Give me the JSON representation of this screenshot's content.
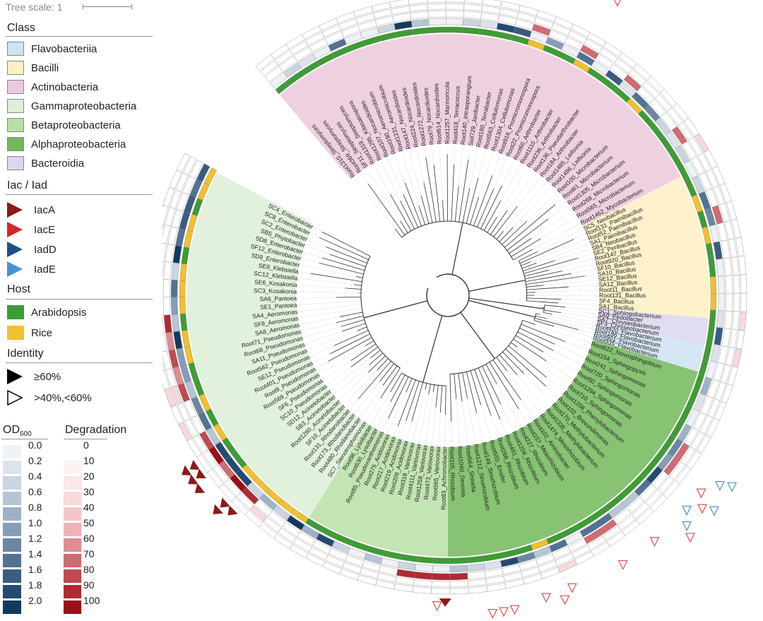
{
  "tree_scale": {
    "label": "Tree scale: 1"
  },
  "legend": {
    "class_title": "Class",
    "classes": [
      {
        "name": "Flavobacteriia",
        "color": "#cfe2f3"
      },
      {
        "name": "Bacilli",
        "color": "#fdf0c2"
      },
      {
        "name": "Actinobacteria",
        "color": "#ecc8dc"
      },
      {
        "name": "Gammaproteobacteria",
        "color": "#dcefd6"
      },
      {
        "name": "Betaproteobacteria",
        "color": "#b9dfa6"
      },
      {
        "name": "Alphaproteobacteria",
        "color": "#72b95a"
      },
      {
        "name": "Bacteroidia",
        "color": "#ddd6ee"
      }
    ],
    "iac_title": "Iac / Iad",
    "iac": [
      {
        "name": "IacA",
        "color": "#8b1a1a"
      },
      {
        "name": "IacE",
        "color": "#d62728"
      },
      {
        "name": "IadD",
        "color": "#1f4e8c"
      },
      {
        "name": "IadE",
        "color": "#4a90d9"
      }
    ],
    "host_title": "Host",
    "hosts": [
      {
        "name": "Arabidopsis",
        "color": "#3e9c35"
      },
      {
        "name": "Rice",
        "color": "#f0c030"
      }
    ],
    "identity_title": "Identity",
    "identity": [
      {
        "name": "≥60%",
        "filled": true
      },
      {
        "name": ">40%,<60%",
        "filled": false
      }
    ],
    "od_title": "OD",
    "od_sub": "600",
    "od_levels": [
      "0.0",
      "0.2",
      "0.4",
      "0.6",
      "0.8",
      "1.0",
      "1.2",
      "1.4",
      "1.6",
      "1.8",
      "2.0"
    ],
    "od_colors": [
      "#eef1f5",
      "#dde3ea",
      "#cbd5e0",
      "#b6c5d5",
      "#9eb2c7",
      "#859db6",
      "#6b87a4",
      "#537192",
      "#3b5c80",
      "#254a70",
      "#123a60"
    ],
    "deg_title": "Degradation",
    "deg_levels": [
      "0",
      "10",
      "20",
      "30",
      "40",
      "50",
      "60",
      "70",
      "80",
      "90",
      "100"
    ],
    "deg_colors": [
      "#ffffff",
      "#fdf2f3",
      "#fbe6e8",
      "#f8d8db",
      "#f4c6ca",
      "#efb2b7",
      "#df8c92",
      "#d06b72",
      "#c04a52",
      "#b02a33",
      "#9c0f18"
    ]
  },
  "tree": {
    "clades": [
      {
        "class": "Actinobacteria",
        "color": "#ecc8dc",
        "start": -130,
        "end": -27,
        "labels": [
          "Root1310_Streptomyces",
          "Root369_Streptomyces",
          "SF11_Streptomyces",
          "Root1319_Streptomyces",
          "Root1295_Kitasatospora",
          "Root107_Nocardioides",
          "Root190_Aeromicrobium",
          "Root1231_Aeromicrobium",
          "Root147_Nocardioides",
          "Root224_Nocardioides",
          "Root1272_Nocardioides",
          "Root79_Nocardioides",
          "Root614_Nocardioides",
          "Root1257_Marmoricola",
          "Root418_Terracoccus",
          "Root140_Intrasporangium",
          "Soil729_Janibacter",
          "Root180_Terrabacter",
          "Root563_Cellulomonas",
          "Root1304_Cellulomonas",
          "Root916_Promicromonospora",
          "Root22_Promicromonospora",
          "Root60_Arthrobacter",
          "Root1110_Arthrobacter",
          "Root236_Arthrobacter",
          "Root136_Pseudarthrobacter",
          "Root184_Arthrobacter",
          "Root1485_Leifsonia",
          "Root1486_Leifsonia",
          "Root100_Microbacterium",
          "Root61_Microbacterium",
          "Root1305_Microbacterium",
          "Root268_Microbacterium",
          "Root565_Microbacterium",
          "Root1462_Mycobacterium"
        ]
      },
      {
        "class": "Bacilli",
        "color": "#fdf0c2",
        "start": -27,
        "end": 5,
        "labels": [
          "SC5_Neobacillus",
          "Root131_Paenibacillus",
          "Root52_Paenibacillus",
          "SA1_Paenibacillus",
          "SB4_Neobacillus",
          "SE2_Peribacillus",
          "Root147_Bacillus",
          "Root920_Bacillus",
          "SF10_Bacillus",
          "SA10_Bacillus",
          "SE12_Bacillus",
          "SA12_Bacillus",
          "Root11_Bacillus",
          "Root131_Bacillus",
          "SF4_Bacillus",
          "SA1_Bacillus"
        ]
      },
      {
        "class": "Bacteroidia",
        "color": "#ddd6ee",
        "start": 5,
        "end": 11,
        "labels": [
          "SC1_Sphingobacterium",
          "SA9_Pedobacter",
          "SA7_Chryseobacterium",
          "SF3_Chryseobacterium"
        ]
      },
      {
        "class": "Flavobacteriia",
        "color": "#cfe2f3",
        "start": 11,
        "end": 17,
        "labels": [
          "Root420_Flavobacterium",
          "Root186_Flavobacterium",
          "Root901_Flavobacterium",
          "Root935_Flavobacterium"
        ]
      },
      {
        "class": "Alphaproteobacteria",
        "color": "#72b95a",
        "start": 17,
        "end": 90,
        "labels": [
          "Root622_Novosphingobium",
          "Root154_Sphingopyxis",
          "Root241_Sphingomonas",
          "Root720_Sphingomonas",
          "Root50_Sphingomonas",
          "Root1294_Sphingomonas",
          "Root710_Sphingomonas",
          "Root1258_Phenylobacterium",
          "Root102_Brevundimonas",
          "Root170_Methylobacterium",
          "Root1335_Methylobacterium",
          "Root1474_Mesorhizobium",
          "Root102_Aminobacter",
          "Root157_Mesorhizobium",
          "Root227_Rhizobium",
          "Root1204_Rhizobium",
          "Root491_Rhizobium",
          "Root268_Rhizobium",
          "Root555_Ensifer",
          "Root149_Sinorhizobium",
          "Root1212_Sinorhizobium",
          "Root564_Shinella",
          "Root1040_Devosia",
          "Root105_Rhizobium"
        ]
      },
      {
        "class": "Betaproteobacteria",
        "color": "#b9dfa6",
        "start": 90,
        "end": 122,
        "labels": [
          "Root83_Achromobacter",
          "Root565_Variovorax",
          "Root473_Variovorax",
          "Root1258_Variovorax",
          "Root4111_Variovorax",
          "Root318_Variovorax",
          "Root209_Acidovorax",
          "Root219_Acidovorax",
          "Root217_Acidovorax",
          "Root275_Acidovorax",
          "Root85_Pseudoxanthomonas",
          "Root630_Lysobacter",
          "Root96_Lysobacter"
        ]
      },
      {
        "class": "Gammaproteobacteria",
        "color": "#dcefd6",
        "start": 122,
        "end": 208,
        "labels": [
          "SC7_Stenotrophomonas",
          "Root480_Rhodanobacter",
          "Root173_Rhodanobacter",
          "Root131_Rhodanobacter",
          "SF10_Acinetobacter",
          "Root1280_Acinetobacter",
          "SB3_Acinetobacter",
          "SD12_Acinetobacter",
          "SC10_Pseudomonas",
          "SF6_Pseudomonas",
          "Root569_Pseudomonas",
          "Root9_Pseudomonas",
          "Root401_Pseudomonas",
          "SE12_Pseudomonas",
          "Root562_Pseudomonas",
          "SA11_Pseudomonas",
          "Root68_Pseudomonas",
          "Root71_Pseudomonas",
          "SA8_Aeromonas",
          "SF8_Aeromonas",
          "SA4_Aeromonas",
          "SE1_Pantoea",
          "SA6_Pantoea",
          "SC3_Kosakonia",
          "SE6_Kosakonia",
          "SC12_Klebsiella",
          "SE8_Klebsiella",
          "SD9_Enterobacter",
          "SF12_Enterobacter",
          "SD8_Enterobacter",
          "SB5_Phytobacter",
          "SC2_Enterobacter",
          "SC8_Enterobacter",
          "SC4_Enterobacter"
        ]
      }
    ]
  },
  "iac_markers": [
    {
      "group": "IacA",
      "angle": 170.5,
      "ring": 0
    },
    {
      "group": "IacA",
      "angle": 170.5,
      "ring": 1
    },
    {
      "group": "IacA",
      "angle": 168.5,
      "ring": 0
    },
    {
      "group": "IacA",
      "angle": 168.5,
      "ring": 1
    },
    {
      "group": "IacA",
      "angle": 166.5,
      "ring": 0
    },
    {
      "group": "IacA",
      "angle": 166.5,
      "ring": 1
    },
    {
      "group": "IacA",
      "angle": 164.5,
      "ring": 1
    },
    {
      "group": "IacE",
      "angle": 164.5,
      "ring": 2
    },
    {
      "group": "IacA",
      "angle": 146,
      "ring": 0
    },
    {
      "group": "IacA",
      "angle": 146,
      "ring": 1
    },
    {
      "group": "IacA",
      "angle": 144,
      "ring": 0
    },
    {
      "group": "IacA",
      "angle": 144,
      "ring": 1
    },
    {
      "group": "IacA",
      "angle": 142,
      "ring": 1
    },
    {
      "group": "IacA",
      "angle": 137,
      "ring": 0
    },
    {
      "group": "IacA",
      "angle": 137,
      "ring": 1
    },
    {
      "group": "IacA",
      "angle": 135,
      "ring": 0
    },
    {
      "group": "IacA",
      "angle": 90.5,
      "ring": 0
    }
  ]
}
